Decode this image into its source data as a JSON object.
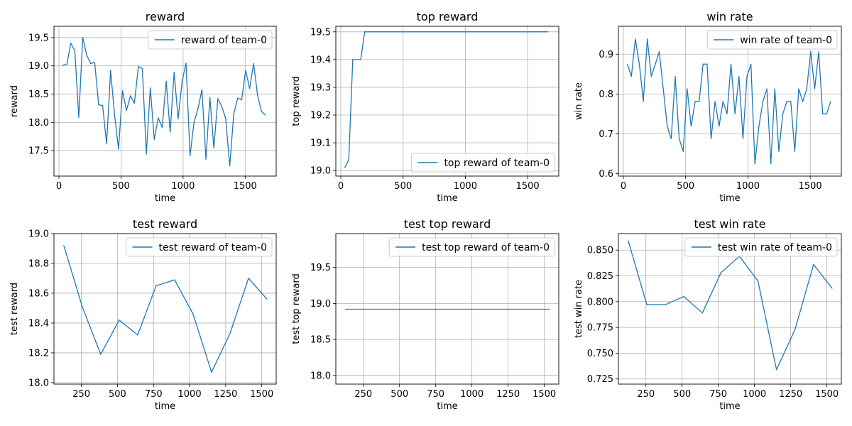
{
  "chart_data": [
    {
      "type": "line",
      "title": "reward",
      "xlabel": "time",
      "ylabel": "reward",
      "xlim": [
        -40,
        1750
      ],
      "ylim": [
        17.05,
        19.7
      ],
      "xticks": [
        0,
        500,
        1000,
        1500
      ],
      "yticks": [
        17.5,
        18.0,
        18.5,
        19.0,
        19.5
      ],
      "ytick_decimals": 1,
      "grid": true,
      "legend_position": "top-right",
      "color": "#1f77b4",
      "series": [
        {
          "name": "reward of team-0",
          "x": [
            32,
            64,
            96,
            128,
            160,
            192,
            224,
            256,
            288,
            320,
            352,
            384,
            416,
            448,
            480,
            512,
            544,
            576,
            608,
            640,
            672,
            704,
            736,
            768,
            800,
            832,
            864,
            896,
            928,
            960,
            992,
            1024,
            1056,
            1088,
            1120,
            1152,
            1184,
            1216,
            1248,
            1280,
            1312,
            1344,
            1376,
            1408,
            1440,
            1472,
            1504,
            1536,
            1568,
            1600,
            1632,
            1664
          ],
          "y": [
            19.01,
            19.03,
            19.4,
            19.27,
            18.09,
            19.5,
            19.19,
            19.04,
            19.06,
            18.31,
            18.3,
            17.62,
            18.92,
            18.14,
            17.53,
            18.56,
            18.21,
            18.47,
            18.34,
            18.99,
            18.95,
            17.44,
            18.61,
            17.7,
            18.08,
            17.91,
            18.73,
            17.83,
            18.89,
            18.06,
            18.72,
            19.05,
            17.41,
            18.0,
            18.24,
            18.58,
            17.35,
            18.44,
            17.55,
            18.42,
            18.28,
            18.06,
            17.23,
            18.15,
            18.43,
            18.4,
            18.92,
            18.6,
            19.04,
            18.48,
            18.19,
            18.13
          ]
        }
      ]
    },
    {
      "type": "line",
      "title": "top reward",
      "xlabel": "time",
      "ylabel": "top reward",
      "xlim": [
        -40,
        1750
      ],
      "ylim": [
        18.98,
        19.52
      ],
      "xticks": [
        0,
        500,
        1000,
        1500
      ],
      "yticks": [
        19.0,
        19.1,
        19.2,
        19.3,
        19.4,
        19.5
      ],
      "ytick_decimals": 1,
      "grid": true,
      "legend_position": "bottom-right",
      "color": "#1f77b4",
      "series": [
        {
          "name": "top reward of team-0",
          "x": [
            32,
            64,
            96,
            128,
            160,
            192,
            224,
            1664
          ],
          "y": [
            19.01,
            19.04,
            19.4,
            19.4,
            19.4,
            19.5,
            19.5,
            19.5
          ]
        }
      ]
    },
    {
      "type": "line",
      "title": "win rate",
      "xlabel": "time",
      "ylabel": "win rate",
      "xlim": [
        -40,
        1750
      ],
      "ylim": [
        0.594,
        0.97
      ],
      "xticks": [
        0,
        500,
        1000,
        1500
      ],
      "yticks": [
        0.6,
        0.7,
        0.8,
        0.9
      ],
      "ytick_decimals": 1,
      "grid": true,
      "legend_position": "top-right",
      "color": "#1f77b4",
      "series": [
        {
          "name": "win rate of team-0",
          "x": [
            32,
            64,
            96,
            128,
            160,
            192,
            224,
            256,
            288,
            320,
            352,
            384,
            416,
            448,
            480,
            512,
            544,
            576,
            608,
            640,
            672,
            704,
            736,
            768,
            800,
            832,
            864,
            896,
            928,
            960,
            992,
            1024,
            1056,
            1088,
            1120,
            1152,
            1184,
            1216,
            1248,
            1280,
            1312,
            1344,
            1376,
            1408,
            1440,
            1472,
            1504,
            1536,
            1568,
            1600,
            1632,
            1664
          ],
          "y": [
            0.875,
            0.844,
            0.938,
            0.875,
            0.781,
            0.938,
            0.844,
            0.875,
            0.906,
            0.813,
            0.719,
            0.688,
            0.844,
            0.688,
            0.656,
            0.813,
            0.719,
            0.781,
            0.781,
            0.875,
            0.875,
            0.688,
            0.781,
            0.719,
            0.781,
            0.75,
            0.875,
            0.75,
            0.844,
            0.688,
            0.844,
            0.875,
            0.625,
            0.719,
            0.781,
            0.813,
            0.625,
            0.813,
            0.656,
            0.75,
            0.781,
            0.781,
            0.656,
            0.813,
            0.781,
            0.813,
            0.906,
            0.813,
            0.906,
            0.75,
            0.75,
            0.781
          ]
        }
      ]
    },
    {
      "type": "line",
      "title": "test reward",
      "xlabel": "time",
      "ylabel": "test reward",
      "xlim": [
        60,
        1600
      ],
      "ylim": [
        17.99,
        19.0
      ],
      "xticks": [
        250,
        500,
        750,
        1000,
        1250,
        1500
      ],
      "yticks": [
        18.0,
        18.2,
        18.4,
        18.6,
        18.8,
        19.0
      ],
      "ytick_decimals": 1,
      "grid": true,
      "legend_position": "top-right",
      "color": "#1f77b4",
      "series": [
        {
          "name": "test reward of team-0",
          "x": [
            128,
            256,
            384,
            512,
            640,
            768,
            896,
            1024,
            1152,
            1280,
            1408,
            1536
          ],
          "y": [
            18.92,
            18.51,
            18.19,
            18.42,
            18.32,
            18.65,
            18.69,
            18.46,
            18.07,
            18.33,
            18.7,
            18.56
          ]
        }
      ]
    },
    {
      "type": "line",
      "title": "test top reward",
      "xlabel": "time",
      "ylabel": "test top reward",
      "xlim": [
        60,
        1600
      ],
      "ylim": [
        17.88,
        19.97
      ],
      "xticks": [
        250,
        500,
        750,
        1000,
        1250,
        1500
      ],
      "yticks": [
        18.0,
        18.5,
        19.0,
        19.5
      ],
      "ytick_decimals": 1,
      "grid": true,
      "legend_position": "top-right",
      "color": "#1f77b4",
      "series": [
        {
          "name": "test top reward of team-0",
          "x": [
            128,
            1536
          ],
          "y": [
            18.92,
            18.92
          ]
        }
      ]
    },
    {
      "type": "line",
      "title": "test win rate",
      "xlabel": "time",
      "ylabel": "test win rate",
      "xlim": [
        60,
        1600
      ],
      "ylim": [
        0.72,
        0.866
      ],
      "xticks": [
        250,
        500,
        750,
        1000,
        1250,
        1500
      ],
      "yticks": [
        0.725,
        0.75,
        0.775,
        0.8,
        0.825,
        0.85
      ],
      "ytick_decimals": 3,
      "grid": true,
      "legend_position": "top-right",
      "color": "#1f77b4",
      "series": [
        {
          "name": "test win rate of team-0",
          "x": [
            128,
            256,
            384,
            512,
            640,
            768,
            896,
            1024,
            1152,
            1280,
            1408,
            1536
          ],
          "y": [
            0.859,
            0.797,
            0.797,
            0.805,
            0.789,
            0.828,
            0.844,
            0.82,
            0.734,
            0.773,
            0.836,
            0.813
          ]
        }
      ]
    }
  ]
}
